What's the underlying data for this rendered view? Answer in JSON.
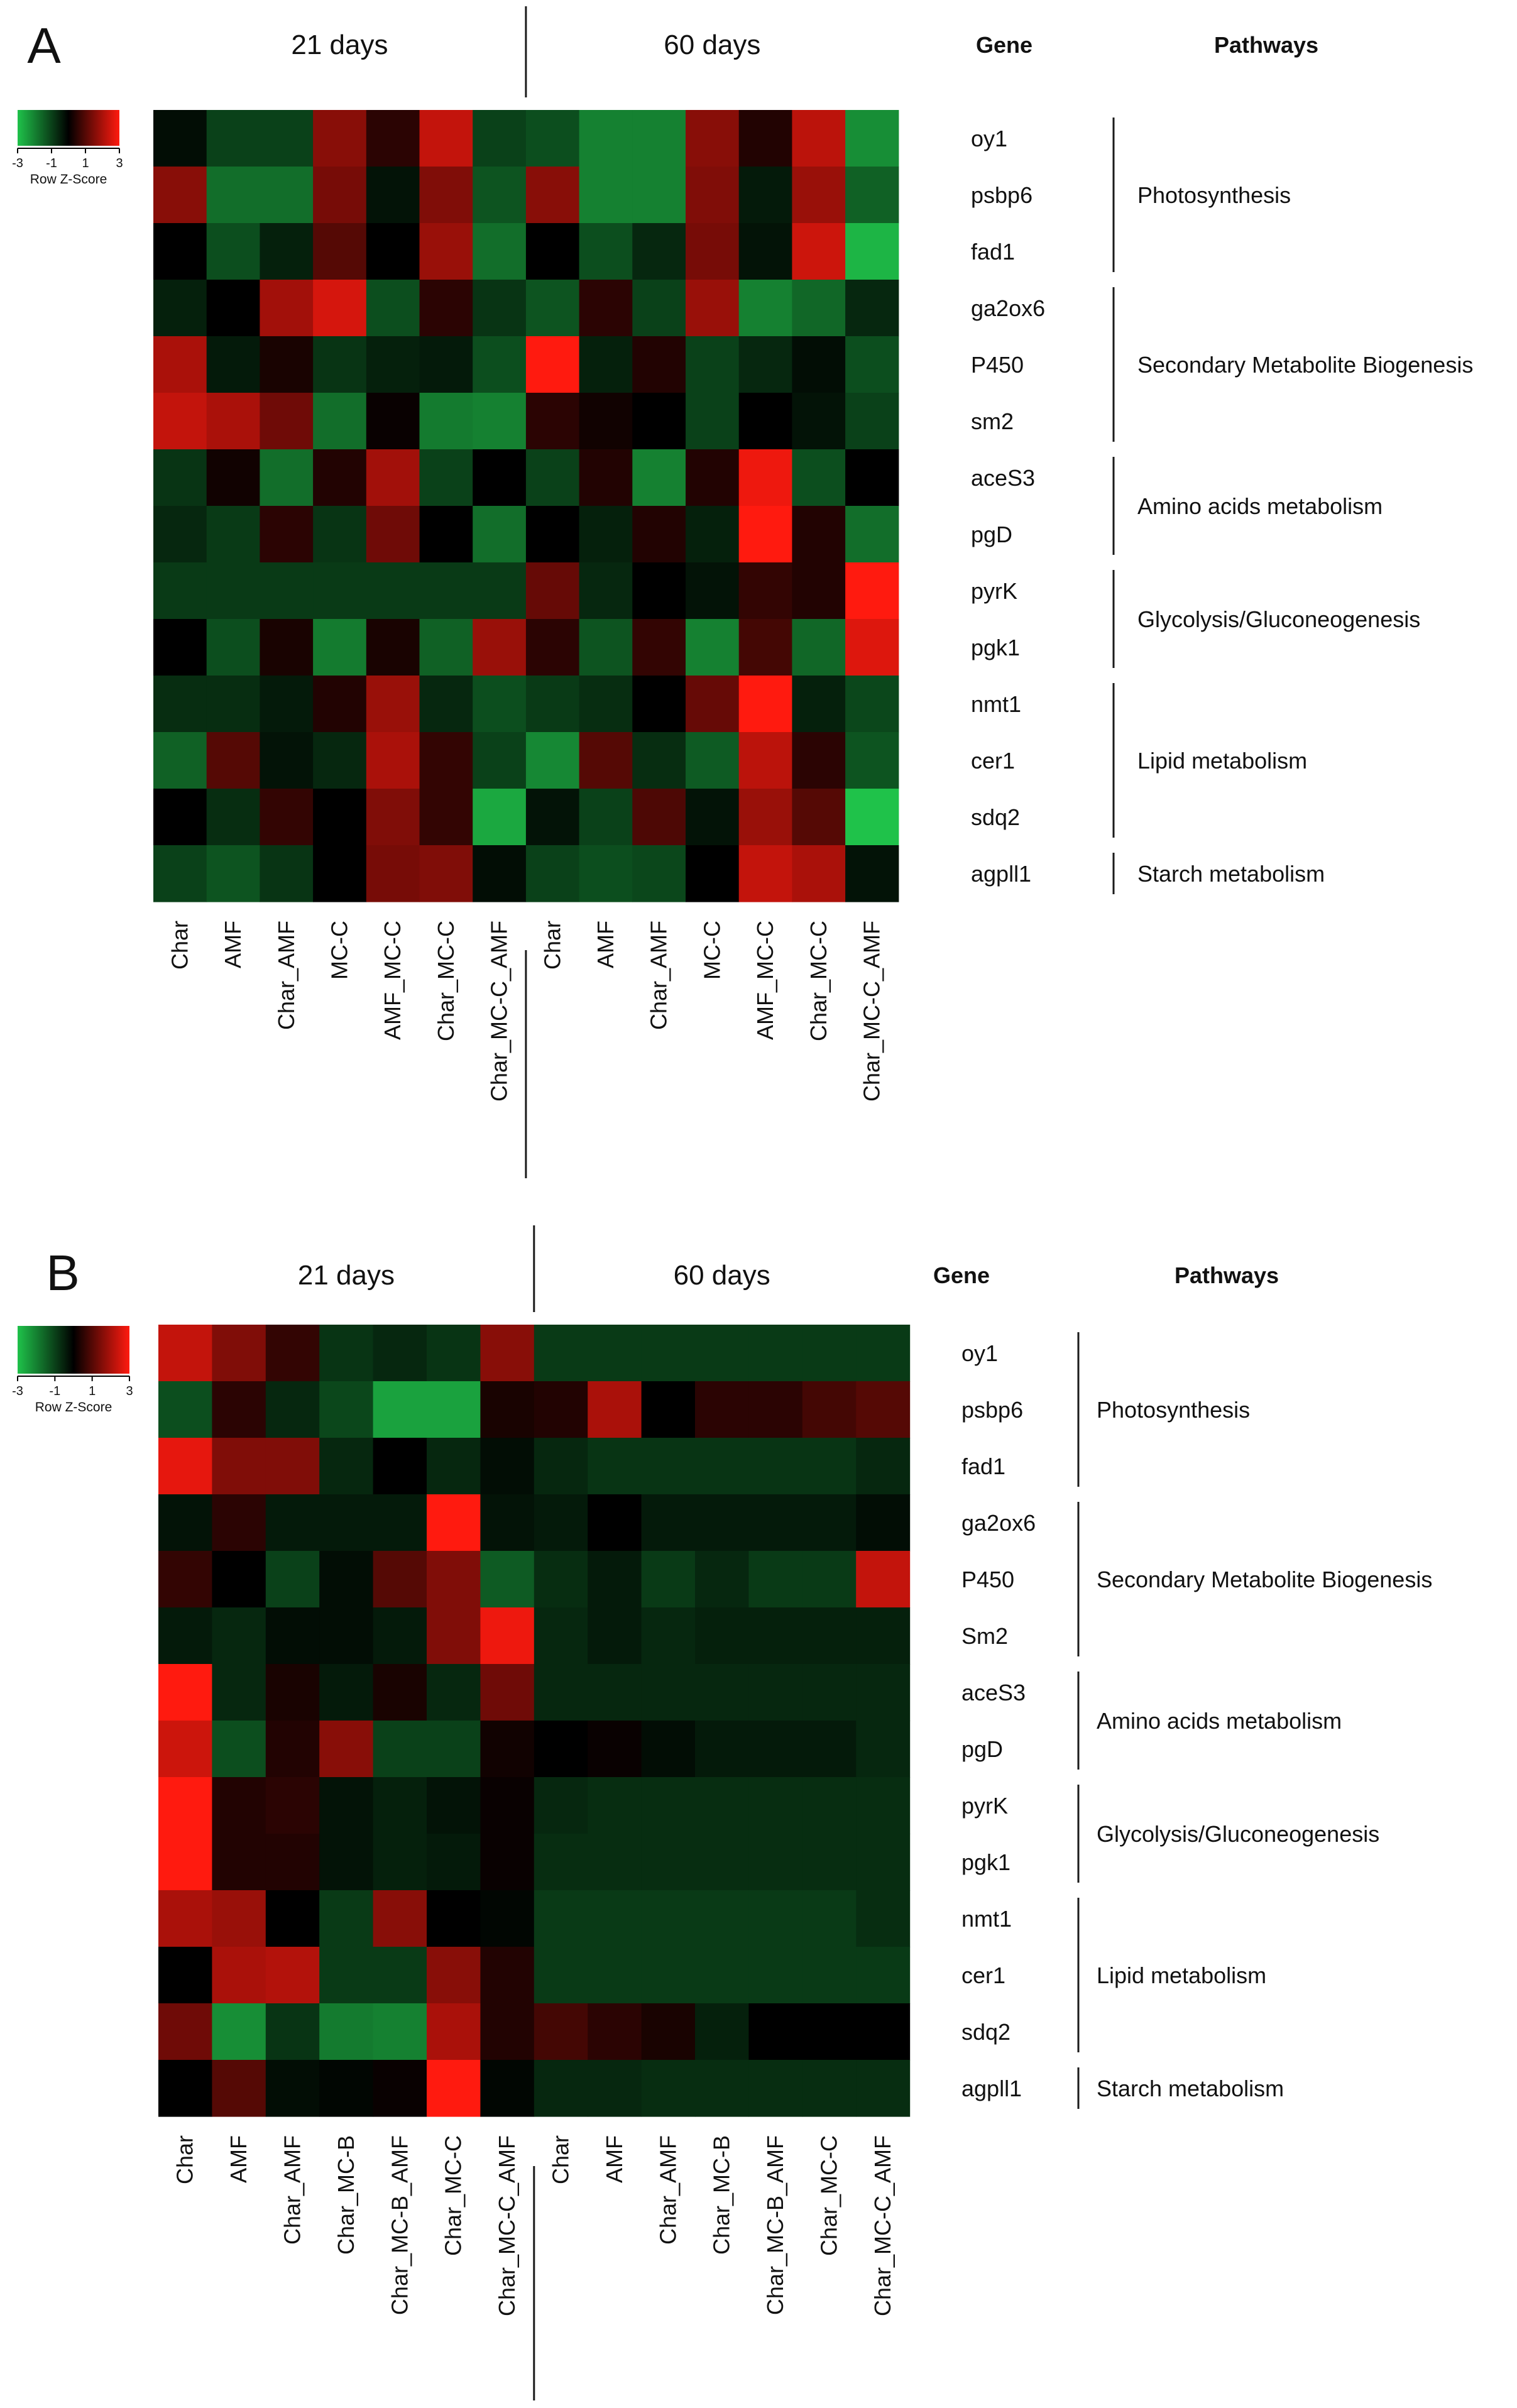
{
  "colors": {
    "low": "#1fc24a",
    "mid": "#000000",
    "high": "#ff1a0f",
    "divider": "#1a1a1a"
  },
  "header_labels": {
    "gene": "Gene",
    "pathways": "Pathways"
  },
  "chart_data": [
    {
      "type": "heatmap",
      "panel": "A",
      "title": "",
      "groups": [
        {
          "label": "21 days",
          "columns": [
            "Char",
            "AMF",
            "Char_AMF",
            "MC-C",
            "AMF_MC-C",
            "Char_MC-C",
            "Char_MC-C_AMF"
          ]
        },
        {
          "label": "60 days",
          "columns": [
            "Char",
            "AMF",
            "Char_AMF",
            "MC-C",
            "AMF_MC-C",
            "Char_MC-C",
            "Char_MC-C_AMF"
          ]
        }
      ],
      "rows": [
        "oy1",
        "psbp6",
        "fad1",
        "ga2ox6",
        "P450",
        "sm2",
        "aceS3",
        "pgD",
        "pyrK",
        "pgk1",
        "nmt1",
        "cer1",
        "sdq2",
        "agpll1"
      ],
      "values": [
        [
          -0.2,
          -1.0,
          -1.0,
          1.6,
          0.5,
          2.3,
          -1.0,
          -1.2,
          -2.0,
          -2.0,
          1.6,
          0.4,
          2.2,
          -2.2
        ],
        [
          1.6,
          -1.7,
          -1.7,
          1.4,
          -0.3,
          1.5,
          -1.3,
          1.6,
          -2.0,
          -2.0,
          1.5,
          -0.4,
          1.8,
          -1.5
        ],
        [
          0.0,
          -1.2,
          -0.5,
          1.0,
          0.0,
          1.8,
          -1.7,
          0.0,
          -1.2,
          -0.6,
          1.4,
          -0.3,
          2.4,
          -2.8
        ],
        [
          -0.5,
          0.0,
          1.9,
          2.5,
          -1.2,
          0.5,
          -0.8,
          -1.3,
          0.5,
          -1.0,
          1.8,
          -2.0,
          -1.6,
          -0.6
        ],
        [
          2.0,
          -0.4,
          0.3,
          -0.8,
          -0.5,
          -0.4,
          -1.2,
          3.0,
          -0.5,
          0.4,
          -1.0,
          -0.6,
          -0.2,
          -1.2
        ],
        [
          2.3,
          2.0,
          1.3,
          -1.7,
          0.1,
          -1.9,
          -2.0,
          0.5,
          0.2,
          0.0,
          -1.0,
          0.0,
          -0.3,
          -1.0
        ],
        [
          -0.8,
          0.2,
          -1.7,
          0.4,
          1.9,
          -1.0,
          0.0,
          -1.0,
          0.4,
          -2.0,
          0.4,
          2.8,
          -1.2,
          0.0
        ],
        [
          -0.6,
          -0.9,
          0.5,
          -0.8,
          1.3,
          0.0,
          -1.7,
          0.0,
          -0.5,
          0.4,
          -0.5,
          3.0,
          0.4,
          -1.7
        ],
        [
          -0.9,
          -0.9,
          -0.9,
          -0.9,
          -0.9,
          -0.9,
          -0.9,
          1.2,
          -0.6,
          0.0,
          -0.3,
          0.6,
          0.4,
          3.0
        ],
        [
          0.0,
          -1.2,
          0.3,
          -1.9,
          0.3,
          -1.5,
          1.8,
          0.5,
          -1.3,
          0.6,
          -2.0,
          0.8,
          -1.6,
          2.6
        ],
        [
          -0.7,
          -0.7,
          -0.4,
          0.4,
          1.8,
          -0.6,
          -1.2,
          -0.9,
          -0.7,
          0.0,
          1.2,
          3.0,
          -0.5,
          -1.1
        ],
        [
          -1.5,
          1.0,
          -0.3,
          -0.6,
          2.0,
          0.6,
          -1.0,
          -2.1,
          1.0,
          -0.7,
          -1.4,
          2.2,
          0.5,
          -1.3
        ],
        [
          0.0,
          -0.7,
          0.6,
          0.0,
          1.5,
          0.6,
          -2.6,
          -0.3,
          -1.0,
          0.9,
          -0.3,
          1.8,
          1.0,
          -3.0
        ],
        [
          -1.0,
          -1.3,
          -0.8,
          0.0,
          1.4,
          1.5,
          -0.2,
          -1.0,
          -1.2,
          -1.1,
          0.0,
          2.3,
          2.0,
          -0.3
        ]
      ],
      "legend": {
        "title": "Row Z-Score",
        "ticks": [
          "-3",
          "-1",
          "1",
          "3"
        ],
        "range": [
          -3,
          3
        ]
      },
      "pathways": [
        {
          "label": "Photosynthesis",
          "first_row": 0,
          "last_row": 2
        },
        {
          "label": "Secondary Metabolite Biogenesis",
          "first_row": 3,
          "last_row": 5
        },
        {
          "label": "Amino acids metabolism",
          "first_row": 6,
          "last_row": 7
        },
        {
          "label": "Glycolysis/Gluconeogenesis",
          "first_row": 8,
          "last_row": 9
        },
        {
          "label": "Lipid metabolism",
          "first_row": 10,
          "last_row": 12
        },
        {
          "label": "Starch metabolism",
          "first_row": 13,
          "last_row": 13
        }
      ]
    },
    {
      "type": "heatmap",
      "panel": "B",
      "title": "",
      "groups": [
        {
          "label": "21 days",
          "columns": [
            "Char",
            "AMF",
            "Char_AMF",
            "Char_MC-B",
            "Char_MC-B_AMF",
            "Char_MC-C",
            "Char_MC-C_AMF"
          ]
        },
        {
          "label": "60 days",
          "columns": [
            "Char",
            "AMF",
            "Char_AMF",
            "Char_MC-B",
            "Char_MC-B_AMF",
            "Char_MC-C",
            "Char_MC-C_AMF"
          ]
        }
      ],
      "rows": [
        "oy1",
        "psbp6",
        "fad1",
        "ga2ox6",
        "P450",
        "Sm2",
        "aceS3",
        "pgD",
        "pyrK",
        "pgk1",
        "nmt1",
        "cer1",
        "sdq2",
        "agpll1"
      ],
      "values": [
        [
          2.3,
          1.5,
          0.6,
          -0.8,
          -0.6,
          -0.8,
          1.6,
          -0.9,
          -0.9,
          -0.9,
          -0.9,
          -0.9,
          -0.9,
          -0.9
        ],
        [
          -1.2,
          0.5,
          -0.6,
          -1.1,
          -2.5,
          -2.5,
          0.3,
          0.4,
          2.0,
          0.0,
          0.5,
          0.5,
          0.8,
          1.0
        ],
        [
          2.7,
          1.5,
          1.5,
          -0.6,
          0.0,
          -0.6,
          -0.2,
          -0.6,
          -0.8,
          -0.8,
          -0.8,
          -0.8,
          -0.8,
          -0.6
        ],
        [
          -0.3,
          0.5,
          -0.4,
          -0.4,
          -0.4,
          3.0,
          -0.3,
          -0.4,
          0.0,
          -0.4,
          -0.4,
          -0.4,
          -0.4,
          -0.2
        ],
        [
          0.6,
          0.0,
          -1.0,
          -0.2,
          1.0,
          1.5,
          -1.4,
          -0.7,
          -0.4,
          -0.9,
          -0.6,
          -0.9,
          -0.9,
          2.3
        ],
        [
          -0.4,
          -0.6,
          -0.2,
          -0.2,
          -0.4,
          1.5,
          2.8,
          -0.6,
          -0.4,
          -0.6,
          -0.5,
          -0.5,
          -0.5,
          -0.5
        ],
        [
          3.0,
          -0.6,
          0.3,
          -0.4,
          0.3,
          -0.6,
          1.3,
          -0.6,
          -0.6,
          -0.6,
          -0.6,
          -0.6,
          -0.6,
          -0.6
        ],
        [
          2.4,
          -1.2,
          0.4,
          1.6,
          -1.0,
          -1.0,
          0.2,
          0.0,
          0.1,
          -0.2,
          -0.4,
          -0.4,
          -0.4,
          -0.6
        ],
        [
          3.0,
          0.4,
          0.5,
          -0.3,
          -0.5,
          -0.3,
          0.1,
          -0.6,
          -0.7,
          -0.7,
          -0.7,
          -0.7,
          -0.7,
          -0.7
        ],
        [
          3.0,
          0.4,
          0.4,
          -0.3,
          -0.5,
          -0.4,
          0.1,
          -0.7,
          -0.7,
          -0.7,
          -0.7,
          -0.7,
          -0.7,
          -0.7
        ],
        [
          2.0,
          1.8,
          0.0,
          -0.9,
          1.6,
          0.0,
          -0.1,
          -0.9,
          -0.9,
          -0.9,
          -0.9,
          -0.9,
          -0.9,
          -0.7
        ],
        [
          0.0,
          2.0,
          2.1,
          -0.9,
          -0.9,
          1.6,
          0.4,
          -0.9,
          -0.9,
          -0.9,
          -0.9,
          -0.9,
          -0.9,
          -0.9
        ],
        [
          1.3,
          -2.2,
          -0.8,
          -1.9,
          -2.0,
          2.0,
          0.4,
          0.8,
          0.5,
          0.3,
          -0.5,
          0.0,
          0.0,
          0.0
        ],
        [
          0.0,
          1.0,
          -0.2,
          -0.1,
          0.1,
          3.0,
          -0.1,
          -0.6,
          -0.6,
          -0.7,
          -0.7,
          -0.7,
          -0.7,
          -0.7
        ]
      ],
      "legend": {
        "title": "Row Z-Score",
        "ticks": [
          "-3",
          "-1",
          "1",
          "3"
        ],
        "range": [
          -3,
          3
        ]
      },
      "pathways": [
        {
          "label": "Photosynthesis",
          "first_row": 0,
          "last_row": 2
        },
        {
          "label": "Secondary Metabolite Biogenesis",
          "first_row": 3,
          "last_row": 5
        },
        {
          "label": "Amino acids metabolism",
          "first_row": 6,
          "last_row": 7
        },
        {
          "label": "Glycolysis/Gluconeogenesis",
          "first_row": 8,
          "last_row": 9
        },
        {
          "label": "Lipid metabolism",
          "first_row": 10,
          "last_row": 12
        },
        {
          "label": "Starch metabolism",
          "first_row": 13,
          "last_row": 13
        }
      ]
    }
  ]
}
